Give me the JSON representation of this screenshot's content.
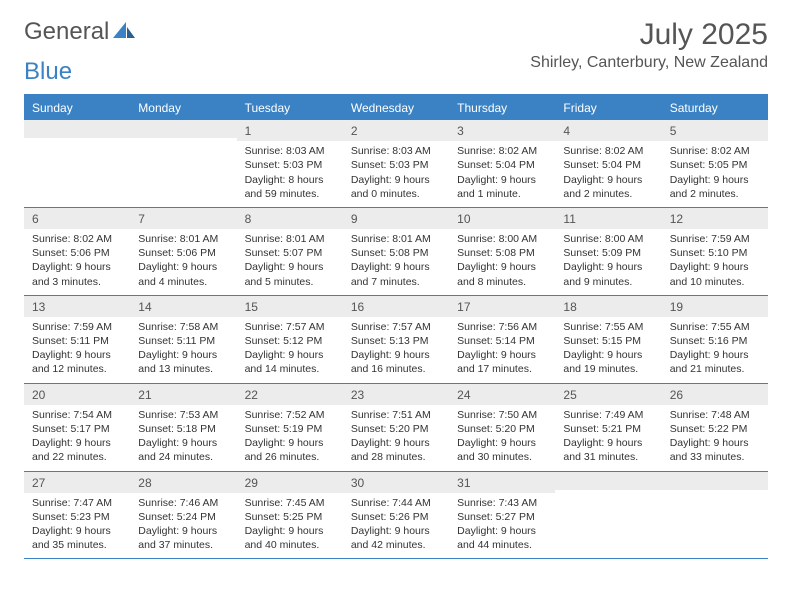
{
  "logo": {
    "text1": "General",
    "text2": "Blue"
  },
  "title": {
    "month": "July 2025",
    "location": "Shirley, Canterbury, New Zealand"
  },
  "colors": {
    "accent": "#3b82c4",
    "gray_band": "#ececec",
    "text": "#333333",
    "muted": "#555555",
    "bg": "#ffffff"
  },
  "day_headers": [
    "Sunday",
    "Monday",
    "Tuesday",
    "Wednesday",
    "Thursday",
    "Friday",
    "Saturday"
  ],
  "weeks": [
    [
      {
        "n": "",
        "sunrise": "",
        "sunset": "",
        "daylight1": "",
        "daylight2": ""
      },
      {
        "n": "",
        "sunrise": "",
        "sunset": "",
        "daylight1": "",
        "daylight2": ""
      },
      {
        "n": "1",
        "sunrise": "Sunrise: 8:03 AM",
        "sunset": "Sunset: 5:03 PM",
        "daylight1": "Daylight: 8 hours",
        "daylight2": "and 59 minutes."
      },
      {
        "n": "2",
        "sunrise": "Sunrise: 8:03 AM",
        "sunset": "Sunset: 5:03 PM",
        "daylight1": "Daylight: 9 hours",
        "daylight2": "and 0 minutes."
      },
      {
        "n": "3",
        "sunrise": "Sunrise: 8:02 AM",
        "sunset": "Sunset: 5:04 PM",
        "daylight1": "Daylight: 9 hours",
        "daylight2": "and 1 minute."
      },
      {
        "n": "4",
        "sunrise": "Sunrise: 8:02 AM",
        "sunset": "Sunset: 5:04 PM",
        "daylight1": "Daylight: 9 hours",
        "daylight2": "and 2 minutes."
      },
      {
        "n": "5",
        "sunrise": "Sunrise: 8:02 AM",
        "sunset": "Sunset: 5:05 PM",
        "daylight1": "Daylight: 9 hours",
        "daylight2": "and 2 minutes."
      }
    ],
    [
      {
        "n": "6",
        "sunrise": "Sunrise: 8:02 AM",
        "sunset": "Sunset: 5:06 PM",
        "daylight1": "Daylight: 9 hours",
        "daylight2": "and 3 minutes."
      },
      {
        "n": "7",
        "sunrise": "Sunrise: 8:01 AM",
        "sunset": "Sunset: 5:06 PM",
        "daylight1": "Daylight: 9 hours",
        "daylight2": "and 4 minutes."
      },
      {
        "n": "8",
        "sunrise": "Sunrise: 8:01 AM",
        "sunset": "Sunset: 5:07 PM",
        "daylight1": "Daylight: 9 hours",
        "daylight2": "and 5 minutes."
      },
      {
        "n": "9",
        "sunrise": "Sunrise: 8:01 AM",
        "sunset": "Sunset: 5:08 PM",
        "daylight1": "Daylight: 9 hours",
        "daylight2": "and 7 minutes."
      },
      {
        "n": "10",
        "sunrise": "Sunrise: 8:00 AM",
        "sunset": "Sunset: 5:08 PM",
        "daylight1": "Daylight: 9 hours",
        "daylight2": "and 8 minutes."
      },
      {
        "n": "11",
        "sunrise": "Sunrise: 8:00 AM",
        "sunset": "Sunset: 5:09 PM",
        "daylight1": "Daylight: 9 hours",
        "daylight2": "and 9 minutes."
      },
      {
        "n": "12",
        "sunrise": "Sunrise: 7:59 AM",
        "sunset": "Sunset: 5:10 PM",
        "daylight1": "Daylight: 9 hours",
        "daylight2": "and 10 minutes."
      }
    ],
    [
      {
        "n": "13",
        "sunrise": "Sunrise: 7:59 AM",
        "sunset": "Sunset: 5:11 PM",
        "daylight1": "Daylight: 9 hours",
        "daylight2": "and 12 minutes."
      },
      {
        "n": "14",
        "sunrise": "Sunrise: 7:58 AM",
        "sunset": "Sunset: 5:11 PM",
        "daylight1": "Daylight: 9 hours",
        "daylight2": "and 13 minutes."
      },
      {
        "n": "15",
        "sunrise": "Sunrise: 7:57 AM",
        "sunset": "Sunset: 5:12 PM",
        "daylight1": "Daylight: 9 hours",
        "daylight2": "and 14 minutes."
      },
      {
        "n": "16",
        "sunrise": "Sunrise: 7:57 AM",
        "sunset": "Sunset: 5:13 PM",
        "daylight1": "Daylight: 9 hours",
        "daylight2": "and 16 minutes."
      },
      {
        "n": "17",
        "sunrise": "Sunrise: 7:56 AM",
        "sunset": "Sunset: 5:14 PM",
        "daylight1": "Daylight: 9 hours",
        "daylight2": "and 17 minutes."
      },
      {
        "n": "18",
        "sunrise": "Sunrise: 7:55 AM",
        "sunset": "Sunset: 5:15 PM",
        "daylight1": "Daylight: 9 hours",
        "daylight2": "and 19 minutes."
      },
      {
        "n": "19",
        "sunrise": "Sunrise: 7:55 AM",
        "sunset": "Sunset: 5:16 PM",
        "daylight1": "Daylight: 9 hours",
        "daylight2": "and 21 minutes."
      }
    ],
    [
      {
        "n": "20",
        "sunrise": "Sunrise: 7:54 AM",
        "sunset": "Sunset: 5:17 PM",
        "daylight1": "Daylight: 9 hours",
        "daylight2": "and 22 minutes."
      },
      {
        "n": "21",
        "sunrise": "Sunrise: 7:53 AM",
        "sunset": "Sunset: 5:18 PM",
        "daylight1": "Daylight: 9 hours",
        "daylight2": "and 24 minutes."
      },
      {
        "n": "22",
        "sunrise": "Sunrise: 7:52 AM",
        "sunset": "Sunset: 5:19 PM",
        "daylight1": "Daylight: 9 hours",
        "daylight2": "and 26 minutes."
      },
      {
        "n": "23",
        "sunrise": "Sunrise: 7:51 AM",
        "sunset": "Sunset: 5:20 PM",
        "daylight1": "Daylight: 9 hours",
        "daylight2": "and 28 minutes."
      },
      {
        "n": "24",
        "sunrise": "Sunrise: 7:50 AM",
        "sunset": "Sunset: 5:20 PM",
        "daylight1": "Daylight: 9 hours",
        "daylight2": "and 30 minutes."
      },
      {
        "n": "25",
        "sunrise": "Sunrise: 7:49 AM",
        "sunset": "Sunset: 5:21 PM",
        "daylight1": "Daylight: 9 hours",
        "daylight2": "and 31 minutes."
      },
      {
        "n": "26",
        "sunrise": "Sunrise: 7:48 AM",
        "sunset": "Sunset: 5:22 PM",
        "daylight1": "Daylight: 9 hours",
        "daylight2": "and 33 minutes."
      }
    ],
    [
      {
        "n": "27",
        "sunrise": "Sunrise: 7:47 AM",
        "sunset": "Sunset: 5:23 PM",
        "daylight1": "Daylight: 9 hours",
        "daylight2": "and 35 minutes."
      },
      {
        "n": "28",
        "sunrise": "Sunrise: 7:46 AM",
        "sunset": "Sunset: 5:24 PM",
        "daylight1": "Daylight: 9 hours",
        "daylight2": "and 37 minutes."
      },
      {
        "n": "29",
        "sunrise": "Sunrise: 7:45 AM",
        "sunset": "Sunset: 5:25 PM",
        "daylight1": "Daylight: 9 hours",
        "daylight2": "and 40 minutes."
      },
      {
        "n": "30",
        "sunrise": "Sunrise: 7:44 AM",
        "sunset": "Sunset: 5:26 PM",
        "daylight1": "Daylight: 9 hours",
        "daylight2": "and 42 minutes."
      },
      {
        "n": "31",
        "sunrise": "Sunrise: 7:43 AM",
        "sunset": "Sunset: 5:27 PM",
        "daylight1": "Daylight: 9 hours",
        "daylight2": "and 44 minutes."
      },
      {
        "n": "",
        "sunrise": "",
        "sunset": "",
        "daylight1": "",
        "daylight2": ""
      },
      {
        "n": "",
        "sunrise": "",
        "sunset": "",
        "daylight1": "",
        "daylight2": ""
      }
    ]
  ]
}
